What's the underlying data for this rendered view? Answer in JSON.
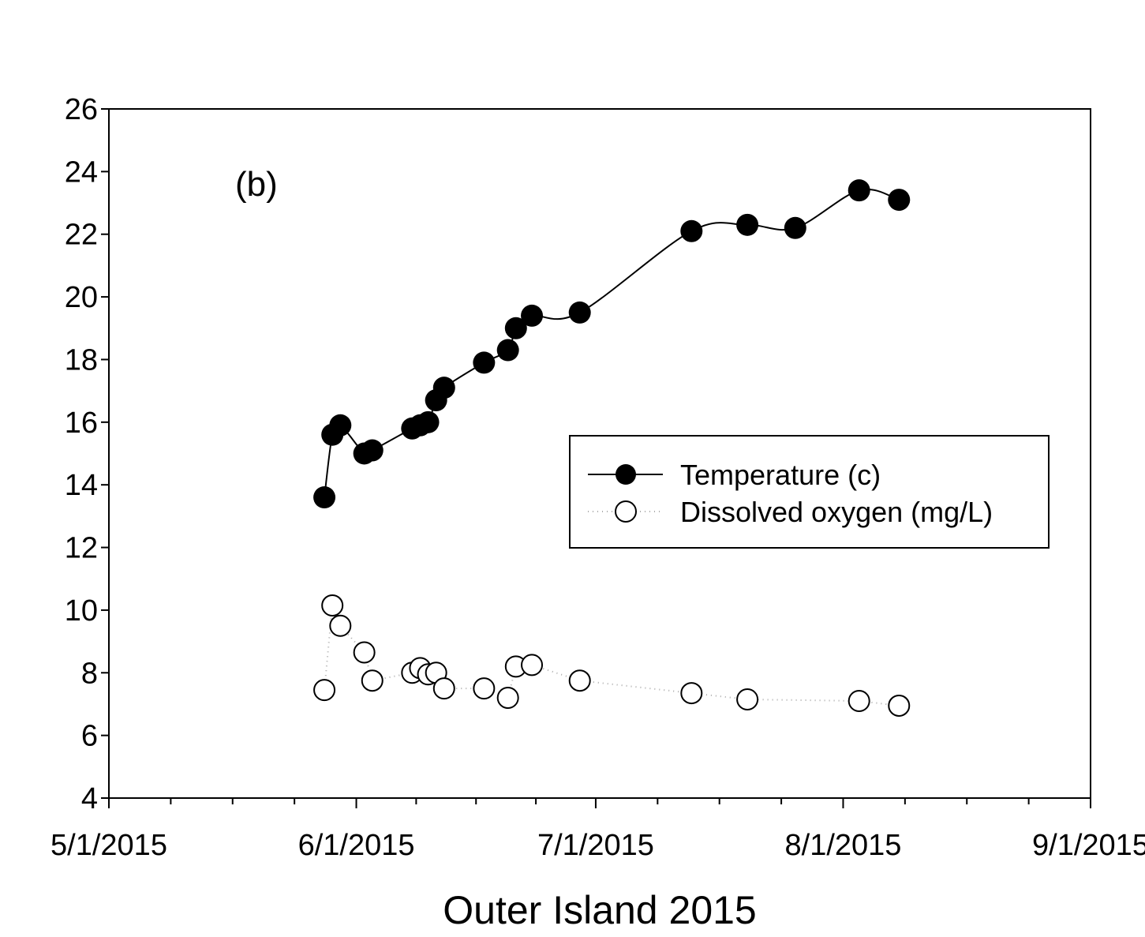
{
  "chart_data": {
    "type": "line",
    "panel_label": "(b)",
    "xlabel": "Outer Island 2015",
    "ylabel": "",
    "x_ticks": [
      "5/1/2015",
      "6/1/2015",
      "7/1/2015",
      "8/1/2015",
      "9/1/2015"
    ],
    "xlim": [
      "2015-05-01",
      "2015-09-01"
    ],
    "ylim": [
      4,
      26
    ],
    "y_ticks": [
      "4",
      "6",
      "8",
      "10",
      "12",
      "14",
      "16",
      "18",
      "20",
      "22",
      "24",
      "26"
    ],
    "grid": false,
    "legend_position": "center-right",
    "series": [
      {
        "name": "Temperature (c)",
        "marker": "filled-circle",
        "line": "solid",
        "color": "#000000",
        "x": [
          "2015-05-28",
          "2015-05-29",
          "2015-05-30",
          "2015-06-02",
          "2015-06-03",
          "2015-06-08",
          "2015-06-09",
          "2015-06-10",
          "2015-06-11",
          "2015-06-12",
          "2015-06-17",
          "2015-06-20",
          "2015-06-21",
          "2015-06-23",
          "2015-06-29",
          "2015-07-13",
          "2015-07-20",
          "2015-07-26",
          "2015-08-03",
          "2015-08-08"
        ],
        "y": [
          13.6,
          15.6,
          15.9,
          15.0,
          15.1,
          15.8,
          15.9,
          16.0,
          16.7,
          17.1,
          17.9,
          18.3,
          19.0,
          19.4,
          19.5,
          22.1,
          22.3,
          22.2,
          23.4,
          23.1
        ]
      },
      {
        "name": "Dissolved oxygen (mg/L)",
        "marker": "open-circle",
        "line": "dotted",
        "color": "#aaaaaa",
        "x": [
          "2015-05-28",
          "2015-05-29",
          "2015-05-30",
          "2015-06-02",
          "2015-06-03",
          "2015-06-08",
          "2015-06-09",
          "2015-06-10",
          "2015-06-11",
          "2015-06-12",
          "2015-06-17",
          "2015-06-20",
          "2015-06-21",
          "2015-06-23",
          "2015-06-29",
          "2015-07-13",
          "2015-07-20",
          "2015-08-03",
          "2015-08-08"
        ],
        "y": [
          7.45,
          10.15,
          9.5,
          8.65,
          7.75,
          8.0,
          8.15,
          7.95,
          8.0,
          7.5,
          7.5,
          7.2,
          8.2,
          8.25,
          7.75,
          7.35,
          7.15,
          7.1,
          6.95
        ]
      }
    ]
  }
}
